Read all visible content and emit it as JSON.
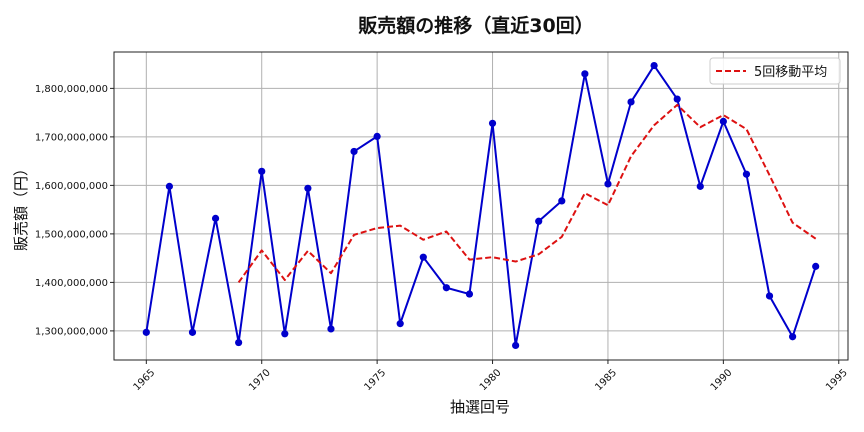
{
  "chart_data": {
    "type": "line",
    "title": "販売額の推移（直近30回）",
    "xlabel": "抽選回号",
    "ylabel": "販売額（円）",
    "xlim": [
      1963.6,
      1995.4
    ],
    "ylim": [
      1240000000,
      1875000000
    ],
    "x_ticks": [
      1965,
      1970,
      1975,
      1980,
      1985,
      1990,
      1995
    ],
    "y_ticks": [
      1300000000,
      1400000000,
      1500000000,
      1600000000,
      1700000000,
      1800000000
    ],
    "y_tick_labels": [
      "1,300,000,000",
      "1,400,000,000",
      "1,500,000,000",
      "1,600,000,000",
      "1,700,000,000",
      "1,800,000,000"
    ],
    "grid": true,
    "legend_position": "top-right",
    "series": [
      {
        "name": "",
        "color": "#0000cc",
        "style": "solid-markers",
        "x": [
          1965,
          1966,
          1967,
          1968,
          1969,
          1970,
          1971,
          1972,
          1973,
          1974,
          1975,
          1976,
          1977,
          1978,
          1979,
          1980,
          1981,
          1982,
          1983,
          1984,
          1985,
          1986,
          1987,
          1988,
          1989,
          1990,
          1991,
          1992,
          1993,
          1994
        ],
        "y": [
          1297000000,
          1598000000,
          1297000000,
          1532000000,
          1276000000,
          1629000000,
          1294000000,
          1594000000,
          1304000000,
          1670000000,
          1701000000,
          1315000000,
          1452000000,
          1389000000,
          1376000000,
          1728000000,
          1270000000,
          1526000000,
          1568000000,
          1830000000,
          1603000000,
          1772000000,
          1847000000,
          1778000000,
          1598000000,
          1732000000,
          1623000000,
          1372000000,
          1288000000,
          1433000000
        ]
      },
      {
        "name": "5回移動平均",
        "color": "#dd1111",
        "style": "dashed",
        "x": [
          1969,
          1970,
          1971,
          1972,
          1973,
          1974,
          1975,
          1976,
          1977,
          1978,
          1979,
          1980,
          1981,
          1982,
          1983,
          1984,
          1985,
          1986,
          1987,
          1988,
          1989,
          1990,
          1991,
          1992,
          1993,
          1994
        ],
        "y": [
          1400000000,
          1466000000,
          1405000000,
          1465000000,
          1419000000,
          1498000000,
          1512000000,
          1517000000,
          1488000000,
          1505000000,
          1447000000,
          1452000000,
          1443000000,
          1458000000,
          1494000000,
          1584000000,
          1559000000,
          1660000000,
          1724000000,
          1766000000,
          1720000000,
          1745000000,
          1716000000,
          1621000000,
          1523000000,
          1490000000
        ]
      }
    ]
  }
}
